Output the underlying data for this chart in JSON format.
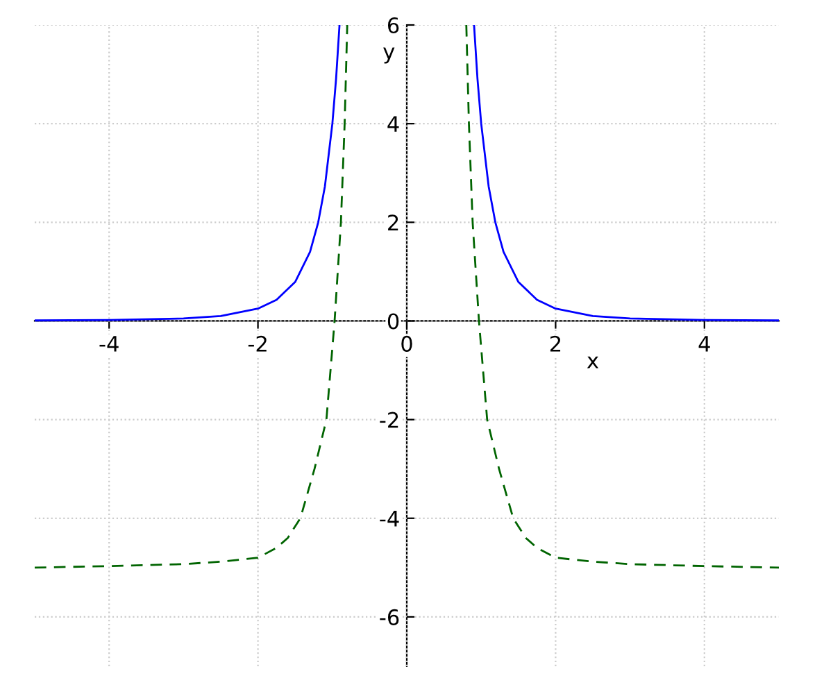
{
  "chart_data": {
    "type": "line",
    "xlabel": "x",
    "ylabel": "y",
    "series": [
      {
        "color": "#0000ff",
        "line_style": "solid",
        "x": [
          -5,
          -4,
          -3,
          -2.5,
          -2,
          -1.75,
          -1.5,
          -1.3,
          -1.19,
          -1.1,
          -1.0,
          -0.95,
          -0.904,
          0,
          0.904,
          0.95,
          1.0,
          1.1,
          1.19,
          1.3,
          1.5,
          1.75,
          2,
          2.5,
          3,
          4,
          5
        ],
        "values": [
          0.01,
          0.02,
          0.05,
          0.1,
          0.25,
          0.43,
          0.79,
          1.4,
          2.0,
          2.73,
          4.0,
          4.91,
          6.0,
          null,
          6.0,
          4.91,
          4.0,
          2.73,
          2.0,
          1.4,
          0.79,
          0.43,
          0.25,
          0.1,
          0.05,
          0.02,
          0.01
        ]
      },
      {
        "color": "#006400",
        "line_style": "dashed",
        "x": [
          -5,
          -4,
          -3,
          -2.5,
          -2,
          -1.75,
          -1.6,
          -1.43,
          -1.24,
          -1.08,
          -0.97,
          -0.885,
          -0.835,
          -0.8,
          0,
          0.8,
          0.835,
          0.885,
          0.97,
          1.08,
          1.24,
          1.43,
          1.6,
          1.75,
          2,
          2.5,
          3,
          4,
          5
        ],
        "values": [
          -5.0,
          -4.97,
          -4.93,
          -4.88,
          -4.8,
          -4.6,
          -4.4,
          -4.0,
          -3.0,
          -2.0,
          0.0,
          2.0,
          4.0,
          6.0,
          null,
          6.0,
          4.0,
          2.0,
          0.0,
          -2.0,
          -3.0,
          -4.0,
          -4.4,
          -4.6,
          -4.8,
          -4.88,
          -4.93,
          -4.97,
          -5.0
        ]
      }
    ],
    "xlim": [
      -5,
      5
    ],
    "ylim": [
      -7,
      6
    ],
    "xticks": [
      -4,
      -2,
      0,
      2,
      4
    ],
    "yticks": [
      -6,
      -4,
      -2,
      0,
      2,
      4,
      6
    ],
    "grid": true
  }
}
